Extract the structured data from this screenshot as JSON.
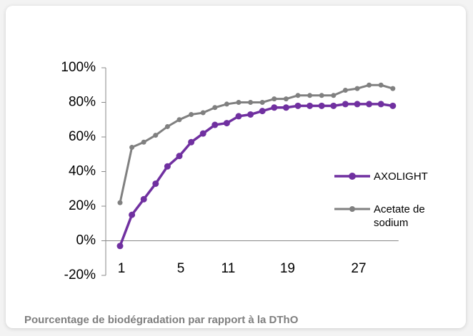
{
  "chart_data": {
    "type": "line",
    "categories": [
      "1",
      null,
      null,
      null,
      null,
      "5",
      null,
      null,
      null,
      "11",
      null,
      null,
      null,
      null,
      "19",
      null,
      null,
      null,
      null,
      null,
      "27",
      null,
      null,
      null
    ],
    "series": [
      {
        "name": "AXOLIGHT",
        "color": "#7030a0",
        "values": [
          -3,
          15,
          24,
          33,
          43,
          49,
          57,
          62,
          67,
          68,
          72,
          73,
          75,
          77,
          77,
          78,
          78,
          78,
          78,
          79,
          79,
          79,
          79,
          78
        ]
      },
      {
        "name": "Acetate de sodium",
        "color": "#808080",
        "values": [
          22,
          54,
          57,
          61,
          66,
          70,
          73,
          74,
          77,
          79,
          80,
          80,
          80,
          82,
          82,
          84,
          84,
          84,
          84,
          87,
          88,
          90,
          90,
          88
        ]
      }
    ],
    "ylim": [
      -20,
      100
    ],
    "yticks": [
      {
        "value": -20,
        "label": "-20%"
      },
      {
        "value": 0,
        "label": "0%"
      },
      {
        "value": 20,
        "label": "20%"
      },
      {
        "value": 40,
        "label": "40%"
      },
      {
        "value": 60,
        "label": "60%"
      },
      {
        "value": 80,
        "label": "80%"
      },
      {
        "value": 100,
        "label": "100%"
      }
    ],
    "legend": "right"
  },
  "caption": "Pourcentage de biodégradation par rapport à la DThO"
}
